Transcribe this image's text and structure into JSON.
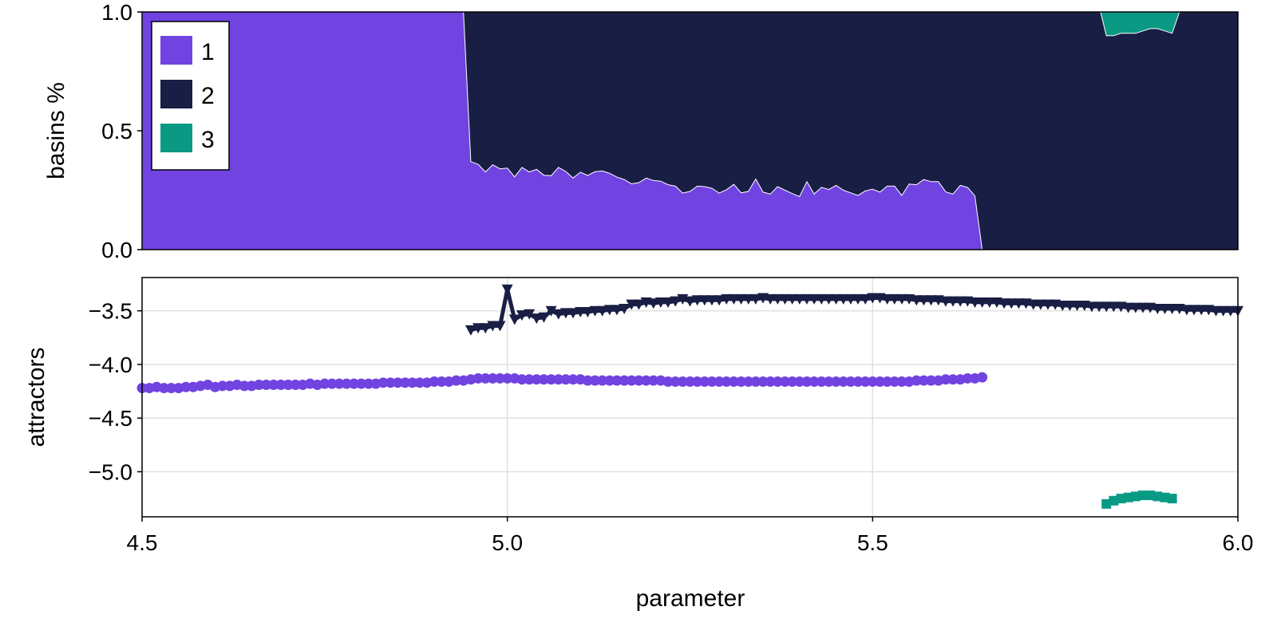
{
  "colors": {
    "1": "#7143E0",
    "2": "#191E44",
    "3": "#0A9A84"
  },
  "chart_data": [
    {
      "type": "area",
      "stacked": true,
      "xlabel": "",
      "ylabel": "basins %",
      "xlim": [
        4.5,
        6.0
      ],
      "ylim": [
        0.0,
        1.0
      ],
      "yticks": [
        "0.0",
        "0.5",
        "1.0"
      ],
      "legend": {
        "placement": "top-left",
        "entries": [
          "1",
          "2",
          "3"
        ]
      },
      "series": [
        {
          "name": "1",
          "x_start": 4.5,
          "x_step": 0.01,
          "values": [
            1,
            1,
            1,
            1,
            1,
            1,
            1,
            1,
            1,
            1,
            1,
            1,
            1,
            1,
            1,
            1,
            1,
            1,
            1,
            1,
            1,
            1,
            1,
            1,
            1,
            1,
            1,
            1,
            1,
            1,
            1,
            1,
            1,
            1,
            1,
            1,
            1,
            1,
            1,
            1,
            1,
            1,
            1,
            1,
            1,
            0.37,
            0.359,
            0.327,
            0.357,
            0.34,
            0.343,
            0.306,
            0.346,
            0.327,
            0.338,
            0.313,
            0.311,
            0.346,
            0.329,
            0.301,
            0.326,
            0.312,
            0.328,
            0.331,
            0.321,
            0.305,
            0.295,
            0.277,
            0.282,
            0.301,
            0.291,
            0.288,
            0.273,
            0.267,
            0.238,
            0.245,
            0.267,
            0.265,
            0.258,
            0.238,
            0.252,
            0.275,
            0.239,
            0.245,
            0.297,
            0.242,
            0.234,
            0.265,
            0.25,
            0.236,
            0.223,
            0.286,
            0.234,
            0.262,
            0.253,
            0.27,
            0.25,
            0.239,
            0.228,
            0.247,
            0.254,
            0.242,
            0.267,
            0.267,
            0.228,
            0.276,
            0.273,
            0.295,
            0.286,
            0.286,
            0.243,
            0.234,
            0.27,
            0.262,
            0.226,
            0
          ]
        },
        {
          "name": "2"
        },
        {
          "name": "3",
          "x_start": 5.82,
          "x_step": 0.01,
          "values": [
            0.1,
            0.1,
            0.09,
            0.09,
            0.09,
            0.08,
            0.07,
            0.07,
            0.08,
            0.09
          ]
        }
      ]
    },
    {
      "type": "scatter",
      "lines": true,
      "grid": true,
      "xlabel": "parameter",
      "ylabel": "attractors",
      "xlim": [
        4.5,
        6.0
      ],
      "ylim": [
        -5.42,
        -3.19
      ],
      "xticks": [
        "4.5",
        "5.0",
        "5.5",
        "6.0"
      ],
      "yticks": [
        "-3.5",
        "-4.0",
        "-4.5",
        "-5.0"
      ],
      "series": [
        {
          "name": "1",
          "marker": "circle",
          "x_start": 4.5,
          "x_step": 0.01,
          "values": [
            -4.22,
            -4.22,
            -4.21,
            -4.22,
            -4.22,
            -4.22,
            -4.21,
            -4.21,
            -4.2,
            -4.19,
            -4.21,
            -4.2,
            -4.2,
            -4.19,
            -4.2,
            -4.2,
            -4.19,
            -4.19,
            -4.19,
            -4.19,
            -4.19,
            -4.19,
            -4.19,
            -4.18,
            -4.19,
            -4.18,
            -4.18,
            -4.18,
            -4.18,
            -4.18,
            -4.18,
            -4.18,
            -4.18,
            -4.17,
            -4.17,
            -4.17,
            -4.17,
            -4.17,
            -4.17,
            -4.17,
            -4.16,
            -4.16,
            -4.16,
            -4.15,
            -4.15,
            -4.14,
            -4.13,
            -4.13,
            -4.13,
            -4.13,
            -4.13,
            -4.13,
            -4.14,
            -4.14,
            -4.14,
            -4.14,
            -4.14,
            -4.14,
            -4.14,
            -4.14,
            -4.14,
            -4.15,
            -4.15,
            -4.15,
            -4.15,
            -4.15,
            -4.15,
            -4.15,
            -4.15,
            -4.15,
            -4.15,
            -4.15,
            -4.16,
            -4.16,
            -4.16,
            -4.16,
            -4.16,
            -4.16,
            -4.16,
            -4.16,
            -4.16,
            -4.16,
            -4.16,
            -4.16,
            -4.16,
            -4.16,
            -4.16,
            -4.16,
            -4.16,
            -4.16,
            -4.16,
            -4.16,
            -4.16,
            -4.16,
            -4.16,
            -4.16,
            -4.16,
            -4.16,
            -4.16,
            -4.16,
            -4.16,
            -4.16,
            -4.16,
            -4.16,
            -4.16,
            -4.16,
            -4.15,
            -4.15,
            -4.15,
            -4.15,
            -4.14,
            -4.14,
            -4.14,
            -4.13,
            -4.13,
            -4.12
          ]
        },
        {
          "name": "2",
          "marker": "triangle-down",
          "x_start": 4.95,
          "x_step": 0.01,
          "values": [
            -3.68,
            -3.66,
            -3.66,
            -3.64,
            -3.64,
            -3.3,
            -3.58,
            -3.54,
            -3.53,
            -3.57,
            -3.56,
            -3.5,
            -3.53,
            -3.52,
            -3.52,
            -3.51,
            -3.51,
            -3.5,
            -3.5,
            -3.49,
            -3.49,
            -3.48,
            -3.44,
            -3.44,
            -3.42,
            -3.43,
            -3.42,
            -3.42,
            -3.41,
            -3.39,
            -3.41,
            -3.4,
            -3.4,
            -3.4,
            -3.4,
            -3.39,
            -3.39,
            -3.39,
            -3.39,
            -3.39,
            -3.38,
            -3.39,
            -3.39,
            -3.39,
            -3.39,
            -3.39,
            -3.39,
            -3.39,
            -3.39,
            -3.39,
            -3.39,
            -3.39,
            -3.39,
            -3.39,
            -3.39,
            -3.38,
            -3.38,
            -3.39,
            -3.39,
            -3.39,
            -3.39,
            -3.4,
            -3.4,
            -3.4,
            -3.4,
            -3.41,
            -3.41,
            -3.41,
            -3.41,
            -3.42,
            -3.42,
            -3.42,
            -3.42,
            -3.43,
            -3.43,
            -3.43,
            -3.43,
            -3.44,
            -3.44,
            -3.44,
            -3.44,
            -3.45,
            -3.45,
            -3.45,
            -3.45,
            -3.46,
            -3.46,
            -3.46,
            -3.46,
            -3.46,
            -3.47,
            -3.47,
            -3.47,
            -3.47,
            -3.48,
            -3.48,
            -3.48,
            -3.48,
            -3.49,
            -3.49,
            -3.49,
            -3.49,
            -3.5,
            -3.5,
            -3.5,
            -3.5
          ]
        },
        {
          "name": "3",
          "marker": "square",
          "x_start": 5.82,
          "x_step": 0.01,
          "values": [
            -5.3,
            -5.27,
            -5.25,
            -5.24,
            -5.23,
            -5.22,
            -5.22,
            -5.23,
            -5.24,
            -5.25
          ]
        }
      ]
    }
  ]
}
